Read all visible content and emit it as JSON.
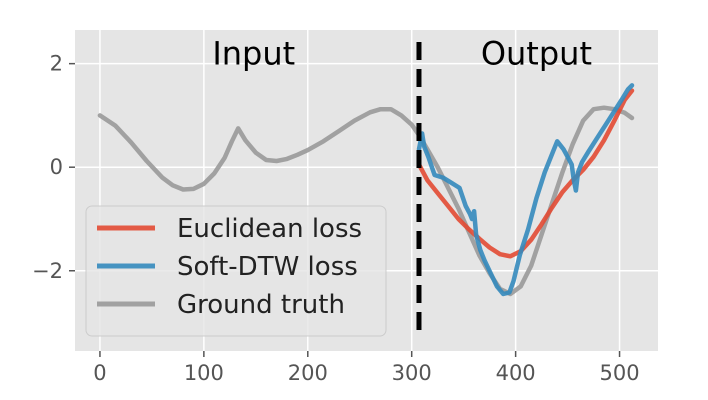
{
  "chart_data": {
    "type": "line",
    "title": "",
    "xlabel": "",
    "ylabel": "",
    "xlim": [
      -24,
      537
    ],
    "ylim": [
      -3.55,
      2.65
    ],
    "xticks": [
      0,
      100,
      200,
      300,
      400,
      500
    ],
    "yticks": [
      2,
      0,
      -2
    ],
    "ytick_labels": [
      "2",
      "0",
      "−2"
    ],
    "grid": true,
    "background": "#e5e5e5",
    "grid_color": "#ffffff",
    "legend_position": "bottom-left",
    "annotations": [
      {
        "text": "Input",
        "x": 148,
        "y": 2.2
      },
      {
        "text": "Output",
        "x": 420,
        "y": 2.2
      }
    ],
    "divider": {
      "x": 307,
      "style": "dashed",
      "color": "#000000"
    },
    "series": [
      {
        "name": "Ground truth",
        "color": "#999999",
        "x": [
          0,
          15,
          30,
          45,
          60,
          70,
          80,
          90,
          100,
          110,
          120,
          127,
          133,
          140,
          150,
          160,
          170,
          180,
          190,
          200,
          215,
          230,
          245,
          260,
          270,
          280,
          290,
          300,
          307,
          315,
          325,
          335,
          345,
          355,
          365,
          375,
          385,
          395,
          405,
          415,
          425,
          435,
          445,
          455,
          465,
          475,
          485,
          495,
          505,
          512
        ],
        "y": [
          1.0,
          0.8,
          0.48,
          0.12,
          -0.2,
          -0.35,
          -0.43,
          -0.42,
          -0.32,
          -0.12,
          0.18,
          0.5,
          0.75,
          0.52,
          0.28,
          0.14,
          0.12,
          0.16,
          0.24,
          0.33,
          0.5,
          0.7,
          0.9,
          1.06,
          1.12,
          1.12,
          1.0,
          0.82,
          0.62,
          0.35,
          0.0,
          -0.4,
          -0.8,
          -1.25,
          -1.7,
          -2.05,
          -2.35,
          -2.45,
          -2.3,
          -1.9,
          -1.3,
          -0.7,
          -0.1,
          0.45,
          0.9,
          1.12,
          1.15,
          1.12,
          1.05,
          0.95
        ]
      },
      {
        "name": "Euclidean loss",
        "color": "#e24a33",
        "x": [
          307,
          315,
          325,
          335,
          345,
          355,
          365,
          375,
          385,
          395,
          405,
          415,
          425,
          435,
          445,
          455,
          465,
          475,
          485,
          495,
          505,
          512
        ],
        "y": [
          0.05,
          -0.25,
          -0.5,
          -0.75,
          -1.0,
          -1.2,
          -1.38,
          -1.55,
          -1.68,
          -1.72,
          -1.62,
          -1.4,
          -1.1,
          -0.78,
          -0.48,
          -0.25,
          -0.05,
          0.2,
          0.52,
          0.9,
          1.3,
          1.48
        ]
      },
      {
        "name": "Soft-DTW loss",
        "color": "#348abd",
        "x": [
          307,
          310,
          312,
          316,
          322,
          330,
          338,
          346,
          352,
          356,
          358,
          360,
          362,
          366,
          370,
          376,
          382,
          388,
          394,
          398,
          404,
          412,
          420,
          428,
          436,
          440,
          442,
          446,
          450,
          454,
          456,
          458,
          460,
          464,
          470,
          478,
          486,
          494,
          502,
          508,
          512
        ],
        "y": [
          0.35,
          0.65,
          0.4,
          0.2,
          -0.15,
          -0.2,
          -0.3,
          -0.4,
          -0.75,
          -0.9,
          -1.0,
          -0.85,
          -1.3,
          -1.6,
          -1.8,
          -2.05,
          -2.3,
          -2.45,
          -2.42,
          -2.2,
          -1.7,
          -1.2,
          -0.6,
          -0.1,
          0.3,
          0.5,
          0.45,
          0.35,
          0.2,
          0.05,
          -0.25,
          -0.45,
          -0.1,
          0.1,
          0.3,
          0.55,
          0.8,
          1.05,
          1.3,
          1.5,
          1.58
        ]
      }
    ],
    "legend_entries": [
      "Euclidean loss",
      "Soft-DTW loss",
      "Ground truth"
    ]
  }
}
